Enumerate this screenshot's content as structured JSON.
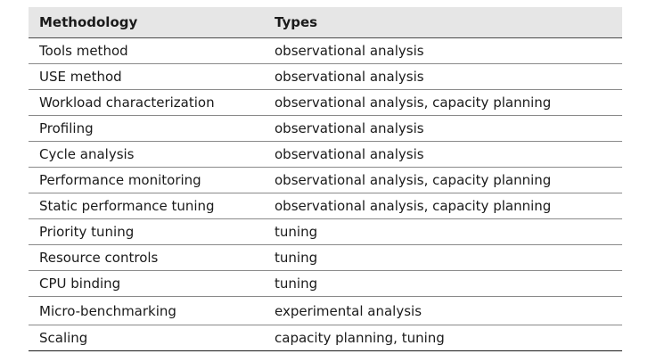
{
  "table": {
    "headers": [
      "Methodology",
      "Types"
    ],
    "rows": [
      [
        "Tools method",
        "observational analysis"
      ],
      [
        "USE method",
        "observational analysis"
      ],
      [
        "Workload characterization",
        "observational analysis, capacity planning"
      ],
      [
        "Profiling",
        "observational analysis"
      ],
      [
        "Cycle analysis",
        "observational analysis"
      ],
      [
        "Performance monitoring",
        "observational analysis, capacity planning"
      ],
      [
        "Static performance tuning",
        "observational analysis, capacity planning"
      ],
      [
        "Priority tuning",
        "tuning"
      ],
      [
        "Resource controls",
        "tuning"
      ],
      [
        "CPU binding",
        "tuning"
      ],
      [
        "Micro-benchmarking",
        "experimental analysis"
      ],
      [
        "Scaling",
        "capacity planning, tuning"
      ]
    ]
  }
}
